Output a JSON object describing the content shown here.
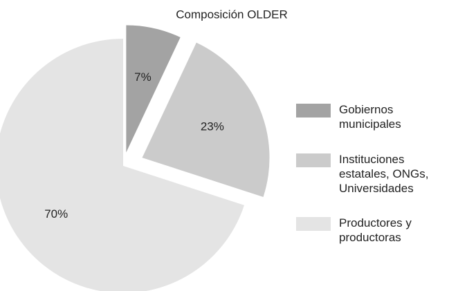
{
  "chart_data": {
    "type": "pie",
    "title": "Composición OLDER",
    "categories": [
      "Gobiernos municipales",
      "Instituciones estatales, ONGs, Universidades",
      "Productores y productoras"
    ],
    "values": [
      7,
      23,
      70
    ],
    "value_labels": [
      "7%",
      "23%",
      "70%"
    ],
    "colors": [
      "#a3a3a3",
      "#cbcbcb",
      "#e4e4e4"
    ],
    "legend": "right"
  }
}
